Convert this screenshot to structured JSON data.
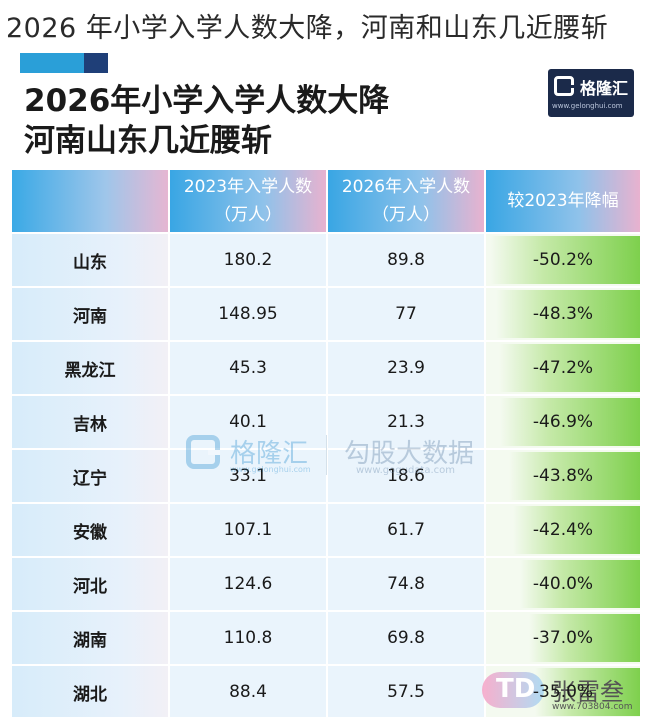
{
  "headline": "2026 年小学入学人数大降，河南和山东几近腰斩",
  "infographic": {
    "title_line1": "2026年小学入学人数大降",
    "title_line2": "河南山东几近腰斩",
    "logo_name": "格隆汇",
    "logo_url": "www.gelonghui.com",
    "accent_blue": "#2a9fd8",
    "accent_green": "#7ed04d"
  },
  "table": {
    "headers": [
      {
        "line1": "",
        "line2": ""
      },
      {
        "line1": "2023年入学人数",
        "line2": "（万人）"
      },
      {
        "line1": "2026年入学人数",
        "line2": "（万人）"
      },
      {
        "line1": "较2023年降幅",
        "line2": ""
      }
    ],
    "rows": [
      {
        "province": "山东",
        "y2023": "180.2",
        "y2026": "89.8",
        "change": "-50.2%",
        "drop": 50.2
      },
      {
        "province": "河南",
        "y2023": "148.95",
        "y2026": "77",
        "change": "-48.3%",
        "drop": 48.3
      },
      {
        "province": "黑龙江",
        "y2023": "45.3",
        "y2026": "23.9",
        "change": "-47.2%",
        "drop": 47.2
      },
      {
        "province": "吉林",
        "y2023": "40.1",
        "y2026": "21.3",
        "change": "-46.9%",
        "drop": 46.9
      },
      {
        "province": "辽宁",
        "y2023": "33.1",
        "y2026": "18.6",
        "change": "-43.8%",
        "drop": 43.8
      },
      {
        "province": "安徽",
        "y2023": "107.1",
        "y2026": "61.7",
        "change": "-42.4%",
        "drop": 42.4
      },
      {
        "province": "河北",
        "y2023": "124.6",
        "y2026": "74.8",
        "change": "-40.0%",
        "drop": 40.0
      },
      {
        "province": "湖南",
        "y2023": "110.8",
        "y2026": "69.8",
        "change": "-37.0%",
        "drop": 37.0
      },
      {
        "province": "湖北",
        "y2023": "88.4",
        "y2026": "57.5",
        "change": "-35.0%",
        "drop": 35.0
      }
    ]
  },
  "watermarks": {
    "center_brand": "格隆汇",
    "center_brand_url": "www.gelonghui.com",
    "center_source": "勾股大数据",
    "center_source_url": "www.gogudata.com",
    "corner_logo": "TD",
    "corner_name": "张雷叁",
    "corner_url": "www.703804.com"
  }
}
